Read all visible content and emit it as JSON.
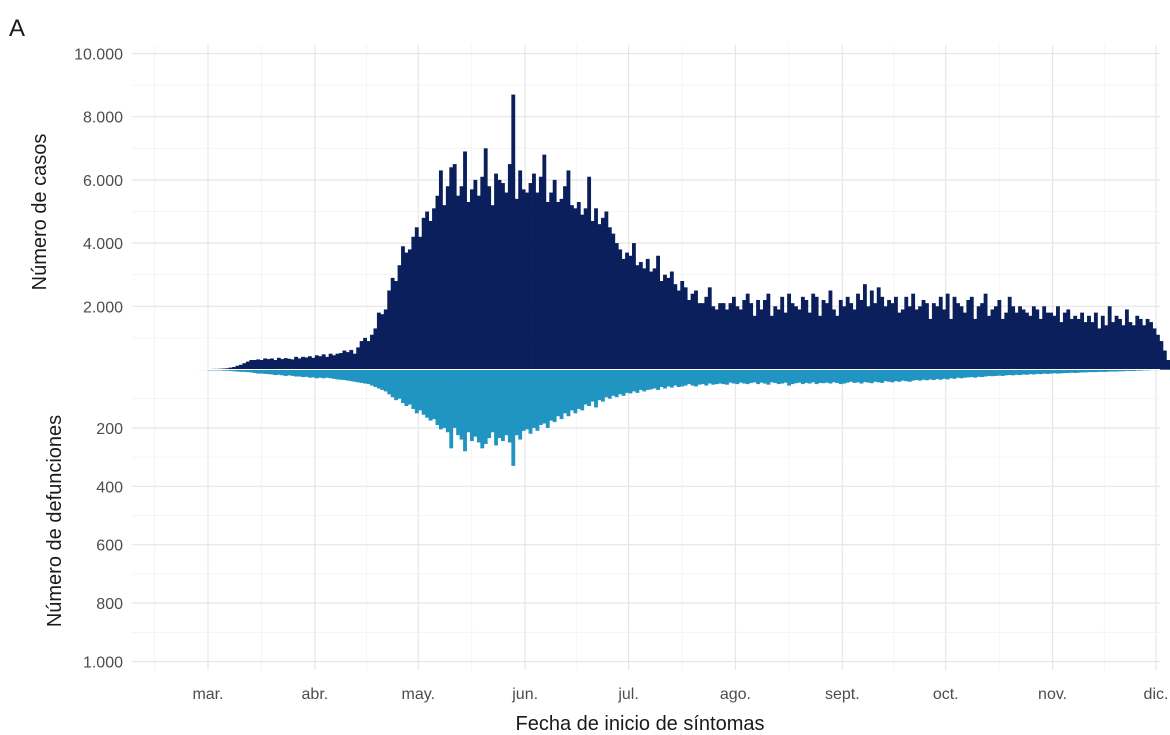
{
  "panel_label": "A",
  "colors": {
    "cases": "#0b1f5c",
    "deaths": "#2195c2",
    "grid": "#e6e6e6"
  },
  "chart_data": [
    {
      "type": "bar",
      "title": "",
      "ylabel": "Número de casos",
      "ylim": [
        0,
        10000
      ],
      "yticks": [
        2000,
        4000,
        6000,
        8000,
        10000
      ],
      "ytick_labels": [
        "2.000",
        "4.000",
        "6.000",
        "8.000",
        "10.000"
      ],
      "grid": true,
      "color": "#0b1f5c",
      "x_start": "2020-02-20",
      "values": [
        5,
        5,
        5,
        5,
        5,
        5,
        10,
        10,
        10,
        15,
        15,
        20,
        20,
        25,
        30,
        40,
        60,
        80,
        120,
        150,
        200,
        250,
        300,
        300,
        320,
        300,
        350,
        330,
        350,
        300,
        370,
        330,
        360,
        340,
        320,
        400,
        350,
        400,
        380,
        420,
        370,
        450,
        420,
        480,
        400,
        500,
        450,
        500,
        520,
        600,
        550,
        620,
        500,
        700,
        900,
        1000,
        900,
        1100,
        1300,
        1800,
        1750,
        1900,
        2500,
        2900,
        2800,
        3300,
        3900,
        3700,
        3800,
        4200,
        4500,
        4200,
        4800,
        5000,
        4700,
        5100,
        5500,
        6300,
        5200,
        5800,
        6400,
        6500,
        5500,
        5800,
        6900,
        5300,
        5700,
        6000,
        5500,
        6100,
        7000,
        5800,
        5200,
        6200,
        6000,
        5900,
        5600,
        6500,
        8700,
        5400,
        6300,
        5700,
        5600,
        5900,
        6200,
        5600,
        6100,
        6800,
        5300,
        5600,
        6000,
        5300,
        5400,
        5800,
        6300,
        5200,
        5100,
        5300,
        4900,
        5100,
        6100,
        4700,
        5100,
        4600,
        4800,
        5000,
        4500,
        4300,
        4000,
        3800,
        3500,
        3700,
        3600,
        4000,
        3300,
        3400,
        3200,
        3500,
        3100,
        3200,
        3600,
        2800,
        3000,
        2900,
        3100,
        2700,
        2500,
        2800,
        2600,
        2200,
        2400,
        2500,
        2100,
        2100,
        2300,
        2600,
        2000,
        1900,
        2100,
        2100,
        1900,
        2100,
        2300,
        2000,
        1900,
        2200,
        2400,
        2100,
        1700,
        2200,
        1900,
        2200,
        2400,
        1700,
        2000,
        1900,
        2300,
        1800,
        2400,
        2100,
        2000,
        1900,
        2300,
        2200,
        1800,
        2400,
        2300,
        1700,
        2200,
        2100,
        2500,
        1900,
        1700,
        2200,
        2000,
        2300,
        2100,
        1900,
        2400,
        2200,
        2700,
        2000,
        2500,
        2100,
        2600,
        2300,
        2000,
        2200,
        2100,
        2300,
        1800,
        1900,
        2300,
        2000,
        2400,
        1900,
        2000,
        2200,
        2100,
        1600,
        2100,
        2000,
        2300,
        1900,
        2400,
        1600,
        2300,
        2100,
        2000,
        1800,
        2200,
        2300,
        1600,
        2000,
        2100,
        2400,
        1700,
        1900,
        2000,
        2200,
        1600,
        1800,
        2300,
        2000,
        1800,
        2000,
        1900,
        1800,
        1700,
        2000,
        1900,
        1600,
        2000,
        1800,
        1800,
        1700,
        2000,
        1500,
        1800,
        1900,
        1600,
        1700,
        1600,
        1800,
        1500,
        1700,
        1500,
        1800,
        1300,
        1700,
        1400,
        2000,
        1500,
        1700,
        1600,
        1400,
        1900,
        1500,
        1400,
        1700,
        1600,
        1400,
        1600,
        1500,
        1300,
        1100,
        900,
        600,
        300,
        100
      ]
    },
    {
      "type": "bar",
      "title": "",
      "xlabel": "Fecha de inicio de síntomas",
      "ylabel": "Número de defunciones",
      "ylim": [
        0,
        1000
      ],
      "y_inverted": true,
      "yticks": [
        200,
        400,
        600,
        800,
        1000
      ],
      "ytick_labels": [
        "200",
        "400",
        "600",
        "800",
        "1.000"
      ],
      "grid": true,
      "color": "#2195c2",
      "x_start": "2020-02-20",
      "values": [
        1,
        1,
        1,
        1,
        1,
        1,
        1,
        2,
        2,
        2,
        3,
        3,
        3,
        3,
        4,
        4,
        5,
        6,
        7,
        8,
        8,
        9,
        10,
        12,
        14,
        14,
        15,
        16,
        17,
        19,
        18,
        20,
        22,
        20,
        22,
        24,
        24,
        26,
        25,
        28,
        27,
        30,
        28,
        30,
        28,
        30,
        32,
        34,
        35,
        36,
        38,
        40,
        42,
        44,
        46,
        48,
        50,
        55,
        60,
        65,
        70,
        75,
        85,
        95,
        105,
        100,
        115,
        125,
        120,
        135,
        150,
        140,
        155,
        165,
        175,
        170,
        190,
        205,
        200,
        215,
        270,
        200,
        225,
        240,
        280,
        215,
        245,
        230,
        250,
        270,
        255,
        235,
        215,
        260,
        235,
        245,
        225,
        250,
        330,
        225,
        240,
        210,
        205,
        220,
        200,
        210,
        190,
        185,
        200,
        175,
        180,
        160,
        170,
        150,
        160,
        140,
        150,
        135,
        140,
        120,
        125,
        110,
        130,
        105,
        110,
        95,
        100,
        90,
        95,
        85,
        90,
        80,
        82,
        75,
        80,
        70,
        75,
        70,
        68,
        65,
        70,
        60,
        65,
        58,
        62,
        55,
        60,
        58,
        55,
        50,
        55,
        58,
        52,
        50,
        55,
        48,
        52,
        50,
        48,
        50,
        52,
        45,
        48,
        50,
        45,
        48,
        50,
        46,
        44,
        50,
        45,
        48,
        52,
        44,
        46,
        50,
        48,
        45,
        55,
        50,
        47,
        45,
        50,
        46,
        48,
        44,
        50,
        46,
        47,
        45,
        48,
        44,
        46,
        50,
        48,
        45,
        42,
        46,
        44,
        48,
        43,
        45,
        47,
        42,
        44,
        46,
        40,
        42,
        44,
        40,
        42,
        38,
        40,
        42,
        38,
        36,
        38,
        35,
        37,
        34,
        36,
        33,
        35,
        32,
        34,
        30,
        32,
        28,
        30,
        28,
        27,
        26,
        28,
        25,
        26,
        24,
        22,
        23,
        22,
        21,
        22,
        20,
        19,
        20,
        18,
        19,
        17,
        18,
        16,
        17,
        15,
        16,
        14,
        15,
        14,
        13,
        14,
        13,
        12,
        12,
        11,
        12,
        11,
        10,
        10,
        9,
        9,
        9,
        8,
        8,
        8,
        7,
        7,
        7,
        6,
        6,
        5,
        5,
        5,
        4,
        4,
        3,
        3,
        2,
        2,
        2,
        1,
        1,
        1,
        1
      ]
    }
  ],
  "x_axis": {
    "tick_labels": [
      "mar.",
      "abr.",
      "may.",
      "jun.",
      "jul.",
      "ago.",
      "sept.",
      "oct.",
      "nov.",
      "dic."
    ],
    "ticks": [
      "2020-03-01",
      "2020-04-01",
      "2020-05-01",
      "2020-06-01",
      "2020-07-01",
      "2020-08-01",
      "2020-09-01",
      "2020-10-01",
      "2020-11-01",
      "2020-12-01"
    ]
  }
}
